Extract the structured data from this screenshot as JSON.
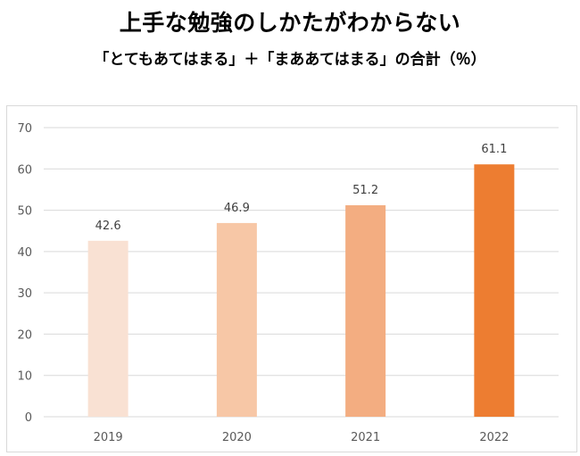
{
  "title": "上手な勉強のしかたがわからない",
  "subtitle": "「とてもあてはまる」＋「まああてはまる」の合計（％）",
  "chart_data": {
    "type": "bar",
    "categories": [
      "2019",
      "2020",
      "2021",
      "2022"
    ],
    "values": [
      42.6,
      46.9,
      51.2,
      61.1
    ],
    "data_labels": [
      "42.6",
      "46.9",
      "51.2",
      "61.1"
    ],
    "bar_colors": [
      "#f9e1d3",
      "#f7c7a6",
      "#f3ad81",
      "#ed7d31"
    ],
    "ylim": [
      0,
      70
    ],
    "yticks": [
      0,
      10,
      20,
      30,
      40,
      50,
      60,
      70
    ],
    "grid": true,
    "grid_color": "#d9d9d9",
    "legend": "none",
    "xlabel": "",
    "ylabel": ""
  }
}
